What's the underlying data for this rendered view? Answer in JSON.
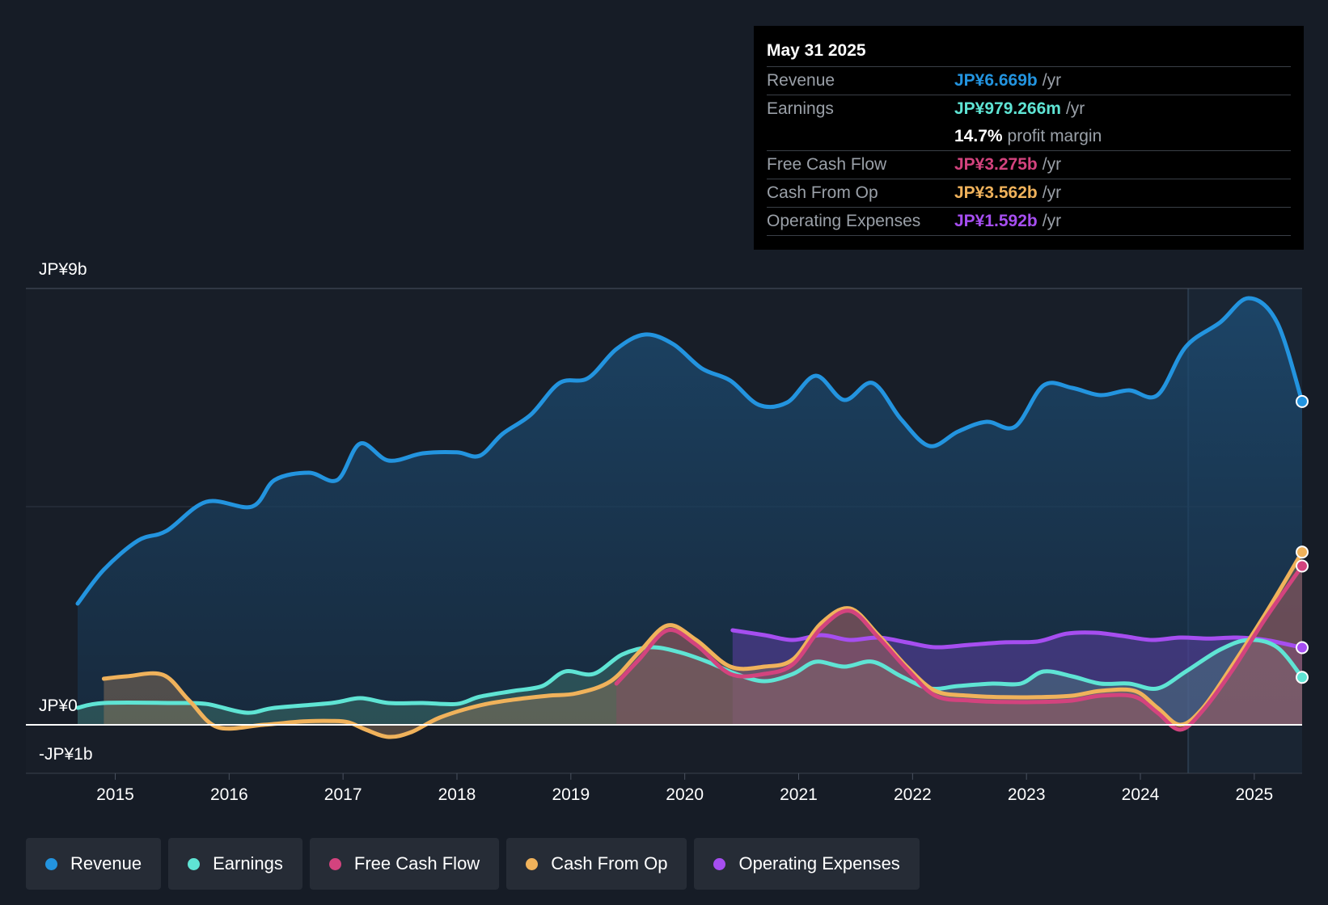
{
  "tooltip": {
    "date": "May 31 2025",
    "rows": {
      "revenue": {
        "label": "Revenue",
        "value": "JP¥6.669b",
        "unit": "/yr"
      },
      "earnings": {
        "label": "Earnings",
        "value": "JP¥979.266m",
        "unit": "/yr"
      },
      "margin": {
        "value": "14.7%",
        "text": "profit margin"
      },
      "fcf": {
        "label": "Free Cash Flow",
        "value": "JP¥3.275b",
        "unit": "/yr"
      },
      "cfo": {
        "label": "Cash From Op",
        "value": "JP¥3.562b",
        "unit": "/yr"
      },
      "opex": {
        "label": "Operating Expenses",
        "value": "JP¥1.592b",
        "unit": "/yr"
      }
    }
  },
  "legend": [
    {
      "label": "Revenue",
      "color": "#2394df"
    },
    {
      "label": "Earnings",
      "color": "#5fe4d4"
    },
    {
      "label": "Free Cash Flow",
      "color": "#d3437e"
    },
    {
      "label": "Cash From Op",
      "color": "#f0b25b"
    },
    {
      "label": "Operating Expenses",
      "color": "#a64ef0"
    }
  ],
  "chart_data": {
    "type": "area",
    "ylim": [
      -1,
      9
    ],
    "y_tick_labels": [
      "JP¥9b",
      "JP¥0",
      "-JP¥1b"
    ],
    "x_tick_labels": [
      "2015",
      "2016",
      "2017",
      "2018",
      "2019",
      "2020",
      "2021",
      "2022",
      "2023",
      "2024",
      "2025"
    ],
    "x_ticks": [
      2015,
      2016,
      2017,
      2018,
      2019,
      2020,
      2021,
      2022,
      2023,
      2024,
      2025
    ],
    "xlim": [
      2014.25,
      2025.42
    ],
    "forecast_start": 2024.42,
    "series": [
      {
        "name": "Revenue",
        "color": "#2394df",
        "points": [
          [
            2014.67,
            2.5
          ],
          [
            2014.9,
            3.2
          ],
          [
            2015.2,
            3.8
          ],
          [
            2015.45,
            4.0
          ],
          [
            2015.8,
            4.6
          ],
          [
            2016.2,
            4.5
          ],
          [
            2016.4,
            5.05
          ],
          [
            2016.7,
            5.2
          ],
          [
            2016.95,
            5.05
          ],
          [
            2017.15,
            5.8
          ],
          [
            2017.4,
            5.45
          ],
          [
            2017.7,
            5.6
          ],
          [
            2018.0,
            5.62
          ],
          [
            2018.2,
            5.55
          ],
          [
            2018.4,
            6.0
          ],
          [
            2018.65,
            6.4
          ],
          [
            2018.9,
            7.05
          ],
          [
            2019.15,
            7.15
          ],
          [
            2019.4,
            7.75
          ],
          [
            2019.65,
            8.05
          ],
          [
            2019.9,
            7.85
          ],
          [
            2020.15,
            7.35
          ],
          [
            2020.4,
            7.1
          ],
          [
            2020.65,
            6.6
          ],
          [
            2020.9,
            6.65
          ],
          [
            2021.15,
            7.2
          ],
          [
            2021.4,
            6.7
          ],
          [
            2021.65,
            7.05
          ],
          [
            2021.9,
            6.3
          ],
          [
            2022.15,
            5.75
          ],
          [
            2022.4,
            6.05
          ],
          [
            2022.65,
            6.25
          ],
          [
            2022.9,
            6.15
          ],
          [
            2023.15,
            7.0
          ],
          [
            2023.4,
            6.95
          ],
          [
            2023.65,
            6.8
          ],
          [
            2023.9,
            6.9
          ],
          [
            2024.15,
            6.8
          ],
          [
            2024.4,
            7.8
          ],
          [
            2024.7,
            8.3
          ],
          [
            2024.95,
            8.8
          ],
          [
            2025.2,
            8.3
          ],
          [
            2025.42,
            6.669
          ]
        ]
      },
      {
        "name": "Earnings",
        "color": "#5fe4d4",
        "points": [
          [
            2014.67,
            0.35
          ],
          [
            2014.9,
            0.45
          ],
          [
            2015.5,
            0.45
          ],
          [
            2015.8,
            0.43
          ],
          [
            2016.15,
            0.25
          ],
          [
            2016.4,
            0.35
          ],
          [
            2016.9,
            0.45
          ],
          [
            2017.15,
            0.55
          ],
          [
            2017.4,
            0.45
          ],
          [
            2017.7,
            0.45
          ],
          [
            2018.0,
            0.43
          ],
          [
            2018.2,
            0.58
          ],
          [
            2018.5,
            0.7
          ],
          [
            2018.75,
            0.8
          ],
          [
            2018.95,
            1.1
          ],
          [
            2019.2,
            1.05
          ],
          [
            2019.45,
            1.45
          ],
          [
            2019.7,
            1.6
          ],
          [
            2019.95,
            1.5
          ],
          [
            2020.2,
            1.3
          ],
          [
            2020.45,
            1.05
          ],
          [
            2020.7,
            0.9
          ],
          [
            2020.95,
            1.05
          ],
          [
            2021.15,
            1.3
          ],
          [
            2021.4,
            1.2
          ],
          [
            2021.65,
            1.3
          ],
          [
            2021.9,
            1.0
          ],
          [
            2022.15,
            0.75
          ],
          [
            2022.4,
            0.8
          ],
          [
            2022.7,
            0.85
          ],
          [
            2022.95,
            0.85
          ],
          [
            2023.15,
            1.1
          ],
          [
            2023.4,
            1.0
          ],
          [
            2023.65,
            0.85
          ],
          [
            2023.9,
            0.85
          ],
          [
            2024.15,
            0.75
          ],
          [
            2024.4,
            1.1
          ],
          [
            2024.7,
            1.55
          ],
          [
            2024.95,
            1.75
          ],
          [
            2025.2,
            1.6
          ],
          [
            2025.42,
            0.979
          ]
        ]
      },
      {
        "name": "Free Cash Flow",
        "color": "#d3437e",
        "points": [
          [
            2019.4,
            0.85
          ],
          [
            2019.6,
            1.35
          ],
          [
            2019.85,
            1.95
          ],
          [
            2020.1,
            1.65
          ],
          [
            2020.4,
            1.05
          ],
          [
            2020.7,
            1.05
          ],
          [
            2020.95,
            1.25
          ],
          [
            2021.2,
            2.0
          ],
          [
            2021.45,
            2.35
          ],
          [
            2021.7,
            1.8
          ],
          [
            2021.95,
            1.15
          ],
          [
            2022.2,
            0.6
          ],
          [
            2022.5,
            0.5
          ],
          [
            2022.8,
            0.47
          ],
          [
            2023.1,
            0.47
          ],
          [
            2023.4,
            0.5
          ],
          [
            2023.65,
            0.6
          ],
          [
            2023.95,
            0.58
          ],
          [
            2024.15,
            0.25
          ],
          [
            2024.35,
            -0.1
          ],
          [
            2024.55,
            0.3
          ],
          [
            2024.8,
            1.1
          ],
          [
            2025.1,
            2.2
          ],
          [
            2025.42,
            3.275
          ]
        ]
      },
      {
        "name": "Cash From Op",
        "color": "#f0b25b",
        "points": [
          [
            2014.9,
            0.95
          ],
          [
            2015.1,
            1.0
          ],
          [
            2015.42,
            1.03
          ],
          [
            2015.65,
            0.5
          ],
          [
            2015.9,
            -0.05
          ],
          [
            2016.3,
            0.0
          ],
          [
            2016.65,
            0.07
          ],
          [
            2016.9,
            0.08
          ],
          [
            2017.05,
            0.05
          ],
          [
            2017.2,
            -0.1
          ],
          [
            2017.4,
            -0.25
          ],
          [
            2017.6,
            -0.15
          ],
          [
            2017.85,
            0.15
          ],
          [
            2018.2,
            0.4
          ],
          [
            2018.5,
            0.52
          ],
          [
            2018.8,
            0.6
          ],
          [
            2019.05,
            0.65
          ],
          [
            2019.35,
            0.9
          ],
          [
            2019.6,
            1.5
          ],
          [
            2019.85,
            2.05
          ],
          [
            2020.1,
            1.75
          ],
          [
            2020.4,
            1.2
          ],
          [
            2020.7,
            1.2
          ],
          [
            2020.95,
            1.35
          ],
          [
            2021.2,
            2.1
          ],
          [
            2021.45,
            2.4
          ],
          [
            2021.7,
            1.85
          ],
          [
            2021.95,
            1.2
          ],
          [
            2022.2,
            0.7
          ],
          [
            2022.5,
            0.6
          ],
          [
            2022.8,
            0.57
          ],
          [
            2023.1,
            0.57
          ],
          [
            2023.4,
            0.6
          ],
          [
            2023.65,
            0.7
          ],
          [
            2023.95,
            0.7
          ],
          [
            2024.15,
            0.35
          ],
          [
            2024.35,
            0.0
          ],
          [
            2024.55,
            0.35
          ],
          [
            2024.8,
            1.2
          ],
          [
            2025.1,
            2.3
          ],
          [
            2025.42,
            3.562
          ]
        ]
      },
      {
        "name": "Operating Expenses",
        "color": "#a64ef0",
        "points": [
          [
            2020.42,
            1.95
          ],
          [
            2020.7,
            1.85
          ],
          [
            2020.95,
            1.75
          ],
          [
            2021.2,
            1.85
          ],
          [
            2021.45,
            1.75
          ],
          [
            2021.7,
            1.8
          ],
          [
            2021.95,
            1.7
          ],
          [
            2022.2,
            1.6
          ],
          [
            2022.5,
            1.65
          ],
          [
            2022.8,
            1.7
          ],
          [
            2023.1,
            1.72
          ],
          [
            2023.35,
            1.88
          ],
          [
            2023.6,
            1.9
          ],
          [
            2023.85,
            1.83
          ],
          [
            2024.1,
            1.75
          ],
          [
            2024.35,
            1.8
          ],
          [
            2024.6,
            1.78
          ],
          [
            2024.85,
            1.8
          ],
          [
            2025.1,
            1.75
          ],
          [
            2025.42,
            1.592
          ]
        ]
      }
    ]
  }
}
